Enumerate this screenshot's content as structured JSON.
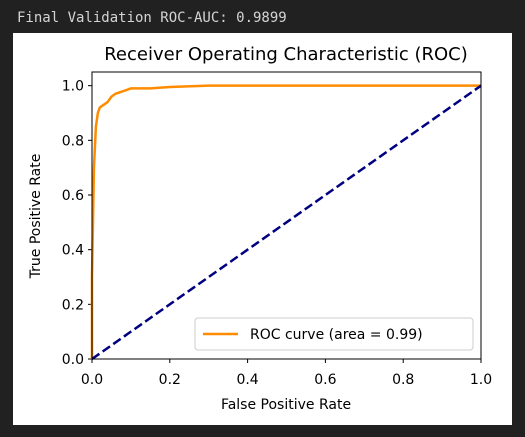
{
  "output_text": "Final Validation ROC-AUC: 0.9899",
  "chart_data": {
    "type": "line",
    "title": "Receiver Operating Characteristic (ROC)",
    "xlabel": "False Positive Rate",
    "ylabel": "True Positive Rate",
    "xlim": [
      0,
      1
    ],
    "ylim": [
      0,
      1.05
    ],
    "xticks": [
      {
        "value": 0,
        "label": "0.0"
      },
      0.2,
      0.4,
      0.6,
      0.8,
      {
        "value": 1,
        "label": "1.0"
      }
    ],
    "yticks": [
      {
        "value": 0,
        "label": "0.0"
      },
      0.2,
      0.4,
      0.6,
      0.8,
      {
        "value": 1,
        "label": "1.0"
      }
    ],
    "grid": false,
    "legend_position": "lower right",
    "series": [
      {
        "name": "ROC curve (area = 0.99)",
        "color": "#ff8c00",
        "x": [
          0,
          0,
          0.005,
          0.01,
          0.015,
          0.02,
          0.03,
          0.04,
          0.05,
          0.06,
          0.08,
          0.1,
          0.15,
          0.2,
          0.3,
          0.5,
          0.7,
          1
        ],
        "values": [
          0,
          0.3,
          0.7,
          0.85,
          0.9,
          0.92,
          0.93,
          0.94,
          0.96,
          0.97,
          0.98,
          0.99,
          0.99,
          0.995,
          1,
          1,
          1,
          1
        ]
      },
      {
        "color": "#000080",
        "dashed": true,
        "x": [
          0,
          1
        ],
        "values": [
          0,
          1
        ]
      }
    ]
  }
}
